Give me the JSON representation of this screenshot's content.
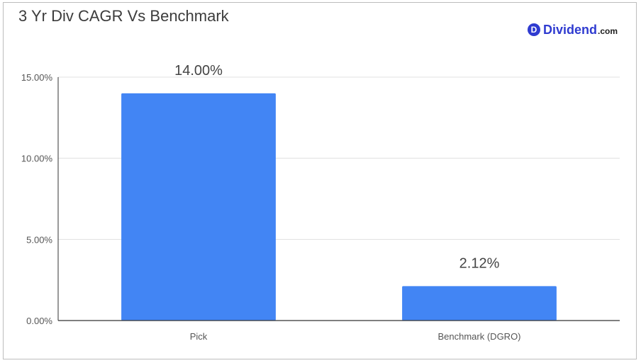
{
  "title": "3 Yr Div CAGR Vs Benchmark",
  "logo": {
    "mark": "D",
    "word": "Dividend",
    "suffix": ".com"
  },
  "colors": {
    "bar": "#4285f4",
    "grid": "#e0e0e0",
    "axis": "#333333",
    "brand": "#2f3bd0"
  },
  "chart_data": {
    "type": "bar",
    "title": "3 Yr Div CAGR Vs Benchmark",
    "categories": [
      "Pick",
      "Benchmark (DGRO)"
    ],
    "values": [
      14.0,
      2.12
    ],
    "data_labels": [
      "14.00%",
      "2.12%"
    ],
    "ylim": [
      0,
      15
    ],
    "yticks": [
      0,
      5,
      10,
      15
    ],
    "ytick_labels": [
      "0.00%",
      "5.00%",
      "10.00%",
      "15.00%"
    ],
    "xlabel": "",
    "ylabel": "",
    "grid": true,
    "legend": "none"
  }
}
